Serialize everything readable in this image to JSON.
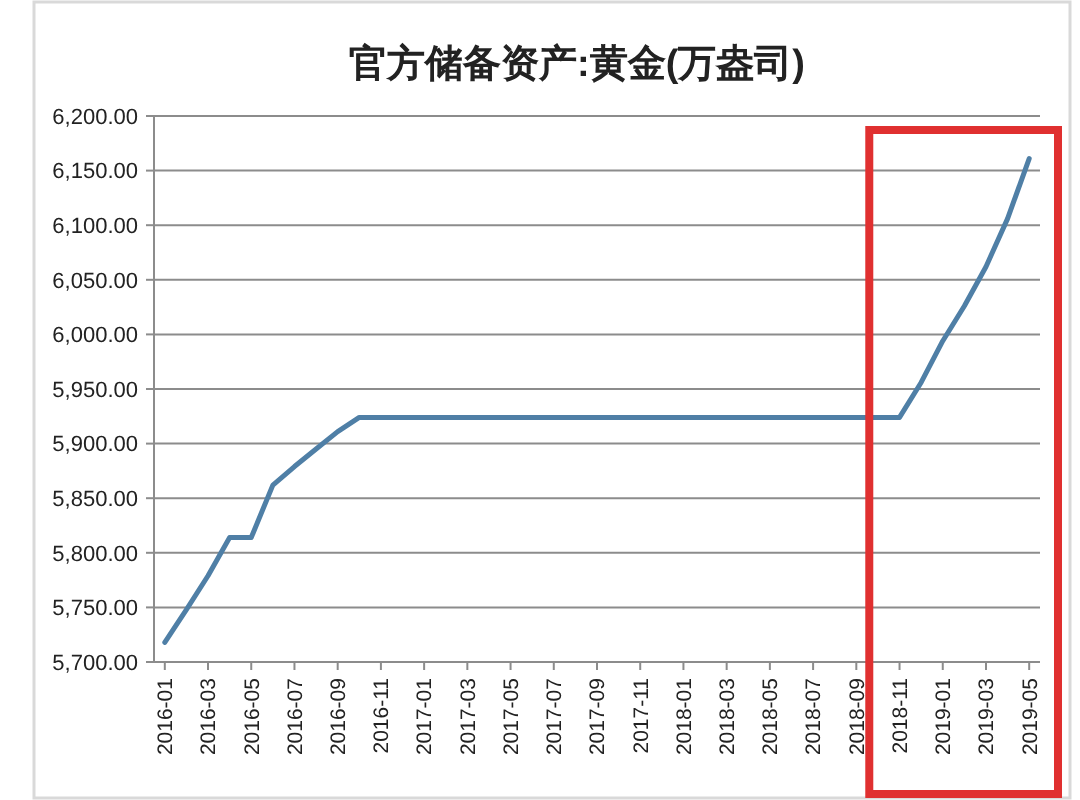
{
  "chart_data": {
    "type": "line",
    "title": "官方储备资产:黄金(万盎司)",
    "categories": [
      "2016-01",
      null,
      "2016-03",
      null,
      "2016-05",
      null,
      "2016-07",
      null,
      "2016-09",
      null,
      "2016-11",
      null,
      "2017-01",
      null,
      "2017-03",
      null,
      "2017-05",
      null,
      "2017-07",
      null,
      "2017-09",
      null,
      "2017-11",
      null,
      "2018-01",
      null,
      "2018-03",
      null,
      "2018-05",
      null,
      "2018-07",
      null,
      "2018-09",
      null,
      "2018-11",
      null,
      "2019-01",
      null,
      "2019-03",
      null,
      "2019-05"
    ],
    "series": [
      {
        "color": "#4f7fa6",
        "values": [
          5718,
          5748,
          5779,
          5814,
          5814,
          5862,
          5879,
          5895,
          5911,
          5924,
          5924,
          5924,
          5924,
          5924,
          5924,
          5924,
          5924,
          5924,
          5924,
          5924,
          5924,
          5924,
          5924,
          5924,
          5924,
          5924,
          5924,
          5924,
          5924,
          5924,
          5924,
          5924,
          5924,
          5924,
          5924,
          5956,
          5994,
          6026,
          6062,
          6106,
          6161
        ]
      }
    ],
    "ylim": [
      5700,
      6200
    ],
    "yticks": [
      {
        "value": 5700,
        "label": "5,700.00"
      },
      {
        "value": 5750,
        "label": "5,750.00"
      },
      {
        "value": 5800,
        "label": "5,800.00"
      },
      {
        "value": 5850,
        "label": "5,850.00"
      },
      {
        "value": 5900,
        "label": "5,900.00"
      },
      {
        "value": 5950,
        "label": "5,950.00"
      },
      {
        "value": 6000,
        "label": "6,000.00"
      },
      {
        "value": 6050,
        "label": "6,050.00"
      },
      {
        "value": 6100,
        "label": "6,100.00"
      },
      {
        "value": 6150,
        "label": "6,150.00"
      },
      {
        "value": 6200,
        "label": "6,200.00"
      }
    ],
    "grid": "y"
  }
}
